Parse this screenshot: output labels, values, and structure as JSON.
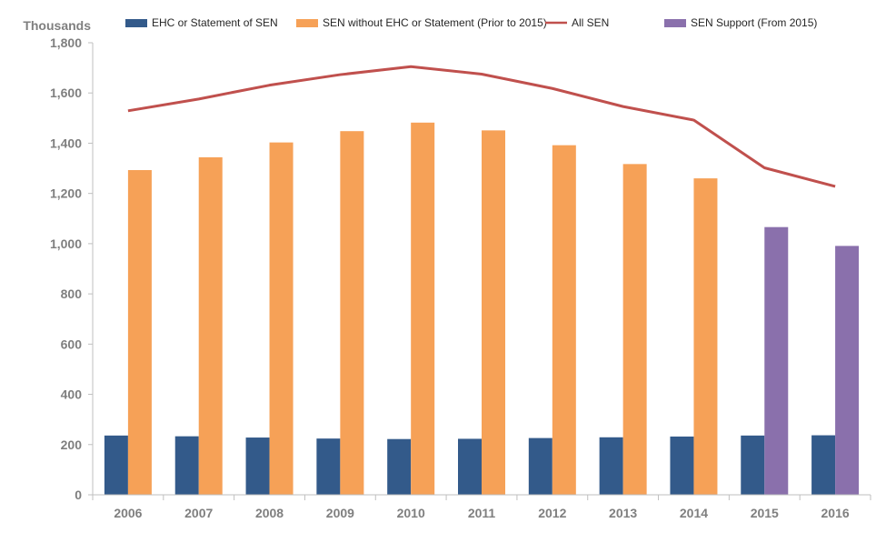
{
  "chart_data": {
    "type": "bar",
    "y_unit_label": "Thousands",
    "categories": [
      "2006",
      "2007",
      "2008",
      "2009",
      "2010",
      "2011",
      "2012",
      "2013",
      "2014",
      "2015",
      "2016"
    ],
    "ylim": [
      0,
      1800
    ],
    "y_ticks": [
      "0",
      "200",
      "400",
      "600",
      "800",
      "1,000",
      "1,200",
      "1,400",
      "1,600",
      "1,800"
    ],
    "y_tick_values": [
      0,
      200,
      400,
      600,
      800,
      1000,
      1200,
      1400,
      1600,
      1800
    ],
    "grid": false,
    "legend_position": "top",
    "series": [
      {
        "name": "EHC or Statement of SEN",
        "kind": "bar",
        "color": "#335a8a",
        "values": [
          236,
          233,
          228,
          224,
          222,
          223,
          226,
          229,
          232,
          236,
          237
        ]
      },
      {
        "name": "SEN without EHC or Statement (Prior to 2015)",
        "kind": "bar",
        "color": "#f6a157",
        "values": [
          1293,
          1344,
          1403,
          1448,
          1482,
          1451,
          1392,
          1317,
          1260,
          null,
          null
        ]
      },
      {
        "name": "All SEN",
        "kind": "line",
        "color": "#c0504d",
        "values": [
          1529,
          1576,
          1631,
          1673,
          1705,
          1675,
          1618,
          1546,
          1492,
          1302,
          1228
        ]
      },
      {
        "name": "SEN Support (From 2015)",
        "kind": "bar",
        "color": "#8a70ac",
        "values": [
          null,
          null,
          null,
          null,
          null,
          null,
          null,
          null,
          null,
          1066,
          991
        ]
      }
    ]
  }
}
